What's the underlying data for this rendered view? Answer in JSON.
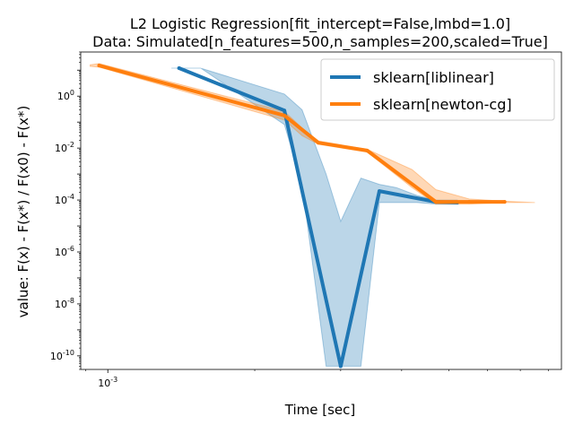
{
  "chart_data": {
    "type": "line",
    "title": "L2 Logistic Regression[fit_intercept=False,lmbd=1.0]",
    "subtitle": "Data: Simulated[n_features=500,n_samples=200,scaled=True]",
    "xlabel": "Time [sec]",
    "ylabel": "value: F(x) - F(x*) / F(x0) - F(x*)",
    "xscale": "log",
    "yscale": "log",
    "xlim": [
      0.00088,
      0.0085
    ],
    "ylim": [
      3e-11,
      50
    ],
    "x_ticks": [
      {
        "value": 0.001,
        "label": "10^-3"
      }
    ],
    "y_ticks": [
      {
        "value": 1,
        "label": "10^0"
      },
      {
        "value": 0.01,
        "label": "10^-2"
      },
      {
        "value": 0.0001,
        "label": "10^-4"
      },
      {
        "value": 1e-06,
        "label": "10^-6"
      },
      {
        "value": 1e-08,
        "label": "10^-8"
      },
      {
        "value": 1e-10,
        "label": "10^-10"
      }
    ],
    "legend_position": "top-right",
    "series": [
      {
        "name": "sklearn[liblinear]",
        "color": "#1f77b4",
        "band_color": "#1f77b4",
        "x": [
          0.0014,
          0.0023,
          0.003,
          0.0036,
          0.0047,
          0.0052
        ],
        "y": [
          12,
          0.28,
          4e-11,
          0.00022,
          8.5e-05,
          8e-05
        ],
        "band_x": [
          0.00135,
          0.00155,
          0.0023,
          0.0025,
          0.0028,
          0.003,
          0.0033,
          0.0036,
          0.0039,
          0.0043,
          0.0047,
          0.0052
        ],
        "band_low": [
          12,
          12,
          0.08,
          0.0004,
          4e-11,
          4e-11,
          4e-11,
          8e-05,
          8e-05,
          8e-05,
          7e-05,
          7e-05
        ],
        "band_high": [
          12,
          12,
          1.2,
          0.3,
          0.001,
          1.5e-05,
          0.0007,
          0.0004,
          0.0003,
          0.00015,
          0.0001,
          0.0001
        ]
      },
      {
        "name": "sklearn[newton-cg]",
        "color": "#ff7f0e",
        "band_color": "#ff7f0e",
        "x": [
          0.00096,
          0.0023,
          0.0027,
          0.0034,
          0.0047,
          0.0055,
          0.0065
        ],
        "y": [
          15,
          0.18,
          0.016,
          0.008,
          8.5e-05,
          8.5e-05,
          8.5e-05
        ],
        "band_x": [
          0.00092,
          0.00096,
          0.0023,
          0.0025,
          0.0027,
          0.0034,
          0.0042,
          0.0047,
          0.0055,
          0.0065,
          0.0075
        ],
        "band_low": [
          14,
          13,
          0.12,
          0.03,
          0.014,
          0.007,
          0.0003,
          7e-05,
          7e-05,
          8e-05,
          8e-05
        ],
        "band_high": [
          16,
          18,
          0.26,
          0.06,
          0.019,
          0.009,
          0.0015,
          0.00025,
          0.00011,
          9e-05,
          8e-05
        ]
      }
    ]
  }
}
